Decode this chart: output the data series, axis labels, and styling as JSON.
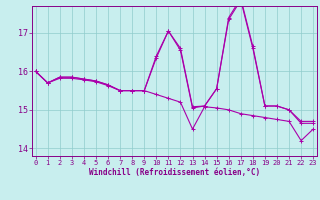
{
  "title": "",
  "xlabel": "Windchill (Refroidissement éolien,°C)",
  "bg_color": "#c8eeee",
  "line_color": "#aa00aa",
  "grid_color": "#90cccc",
  "axis_color": "#880088",
  "spine_color": "#880088",
  "xlim": [
    -0.3,
    23.3
  ],
  "ylim": [
    13.8,
    17.7
  ],
  "xticks": [
    0,
    1,
    2,
    3,
    4,
    5,
    6,
    7,
    8,
    9,
    10,
    11,
    12,
    13,
    14,
    15,
    16,
    17,
    18,
    19,
    20,
    21,
    22,
    23
  ],
  "yticks": [
    14,
    15,
    16,
    17
  ],
  "series1_x": [
    0,
    1,
    2,
    3,
    4,
    5,
    6,
    7,
    8,
    9,
    10,
    11,
    12,
    13,
    14,
    15,
    16,
    17,
    18,
    19,
    20,
    21,
    22,
    23
  ],
  "series1_y": [
    16.0,
    15.7,
    15.85,
    15.85,
    15.8,
    15.75,
    15.65,
    15.5,
    15.5,
    15.5,
    16.35,
    17.05,
    16.55,
    15.05,
    15.1,
    15.55,
    17.35,
    17.85,
    16.6,
    15.1,
    15.1,
    15.0,
    14.65,
    14.65
  ],
  "series2_x": [
    0,
    1,
    2,
    3,
    4,
    5,
    6,
    7,
    8,
    9,
    10,
    11,
    12,
    13,
    14,
    15,
    16,
    17,
    18,
    19,
    20,
    21,
    22,
    23
  ],
  "series2_y": [
    16.0,
    15.7,
    15.85,
    15.85,
    15.8,
    15.75,
    15.65,
    15.5,
    15.5,
    15.5,
    16.4,
    17.05,
    16.6,
    15.08,
    15.1,
    15.55,
    17.4,
    17.9,
    16.65,
    15.1,
    15.1,
    15.0,
    14.7,
    14.7
  ],
  "series3_x": [
    0,
    1,
    2,
    3,
    4,
    5,
    6,
    7,
    8,
    9,
    10,
    11,
    12,
    13,
    14,
    15,
    16,
    17,
    18,
    19,
    20,
    21,
    22,
    23
  ],
  "series3_y": [
    16.0,
    15.7,
    15.82,
    15.82,
    15.78,
    15.73,
    15.63,
    15.5,
    15.5,
    15.5,
    15.4,
    15.3,
    15.2,
    14.5,
    15.08,
    15.05,
    15.0,
    14.9,
    14.85,
    14.8,
    14.75,
    14.7,
    14.2,
    14.5
  ]
}
